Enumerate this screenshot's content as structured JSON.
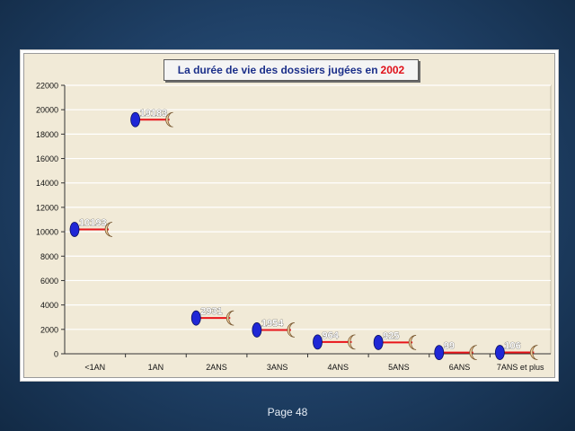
{
  "slide": {
    "footer": "Page 48"
  },
  "chart_data": {
    "type": "scatter",
    "title": "La durée de vie des dossiers jugées en",
    "title_year": "2002",
    "categories": [
      "<1AN",
      "1AN",
      "2ANS",
      "3ANS",
      "4ANS",
      "5ANS",
      "6ANS",
      "7ANS et plus"
    ],
    "values": [
      10193,
      19183,
      2931,
      1954,
      964,
      925,
      99,
      106
    ],
    "value_labels": [
      "10193",
      "19183",
      "2931",
      "1954",
      "964",
      "925",
      "99",
      "106"
    ],
    "y_ticks": [
      0,
      2000,
      4000,
      6000,
      8000,
      10000,
      12000,
      14000,
      16000,
      18000,
      20000,
      22000
    ],
    "ylim": [
      0,
      22000
    ],
    "grid": true,
    "legend": "none",
    "colors": {
      "marker": "#1f27d6",
      "connector": "#e8141a",
      "crescent": "#f3cfa0",
      "plot_background": "#f1ead7",
      "gridline": "#ffffff"
    }
  }
}
